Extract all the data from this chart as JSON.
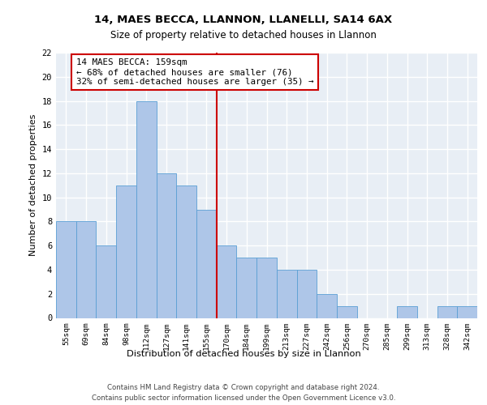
{
  "title1": "14, MAES BECCA, LLANNON, LLANELLI, SA14 6AX",
  "title2": "Size of property relative to detached houses in Llannon",
  "xlabel": "Distribution of detached houses by size in Llannon",
  "ylabel": "Number of detached properties",
  "categories": [
    "55sqm",
    "69sqm",
    "84sqm",
    "98sqm",
    "112sqm",
    "127sqm",
    "141sqm",
    "155sqm",
    "170sqm",
    "184sqm",
    "199sqm",
    "213sqm",
    "227sqm",
    "242sqm",
    "256sqm",
    "270sqm",
    "285sqm",
    "299sqm",
    "313sqm",
    "328sqm",
    "342sqm"
  ],
  "values": [
    8,
    8,
    6,
    11,
    18,
    12,
    11,
    9,
    6,
    5,
    5,
    4,
    4,
    2,
    1,
    0,
    0,
    1,
    0,
    1,
    1
  ],
  "bar_color": "#aec6e8",
  "bar_edge_color": "#5a9fd4",
  "vline_x": 7.5,
  "vline_color": "#cc0000",
  "annotation_text": "14 MAES BECCA: 159sqm\n← 68% of detached houses are smaller (76)\n32% of semi-detached houses are larger (35) →",
  "annotation_box_color": "white",
  "annotation_box_edge_color": "#cc0000",
  "ylim": [
    0,
    22
  ],
  "yticks": [
    0,
    2,
    4,
    6,
    8,
    10,
    12,
    14,
    16,
    18,
    20,
    22
  ],
  "background_color": "#e8eef5",
  "grid_color": "white",
  "footer_line1": "Contains HM Land Registry data © Crown copyright and database right 2024.",
  "footer_line2": "Contains public sector information licensed under the Open Government Licence v3.0."
}
